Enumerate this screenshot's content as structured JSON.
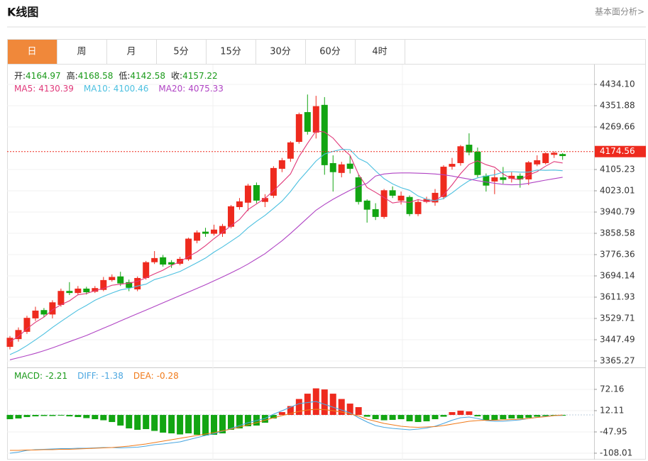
{
  "header": {
    "title": "K线图",
    "link": "基本面分析>"
  },
  "tabs": [
    "日",
    "周",
    "月",
    "5分",
    "15分",
    "30分",
    "60分",
    "4时"
  ],
  "active_tab": 0,
  "chart_data": [
    {
      "type": "candlestick",
      "info": [
        {
          "label": "开:",
          "value": 4164.97
        },
        {
          "label": "高:",
          "value": 4168.58
        },
        {
          "label": "低:",
          "value": 4142.58
        },
        {
          "label": "收:",
          "value": 4157.22
        }
      ],
      "info_value_color": "#1a9a1a",
      "up_color": "#ee2a1e",
      "down_color": "#12a512",
      "open": [
        3420,
        3450,
        3478,
        3530,
        3562,
        3545,
        3582,
        3636,
        3628,
        3645,
        3633,
        3640,
        3678,
        3692,
        3670,
        3642,
        3686,
        3747,
        3766,
        3747,
        3741,
        3758,
        3830,
        3865,
        3857,
        3857,
        3884,
        3960,
        3977,
        4045,
        3980,
        4004,
        4108,
        4147,
        4212,
        4327,
        4248,
        4355,
        4130,
        4092,
        4128,
        4075,
        3985,
        3952,
        3922,
        4025,
        3985,
        3999,
        3933,
        3980,
        3978,
        3999,
        4116,
        4130,
        4201,
        4174,
        4081,
        4059,
        4075,
        4070,
        4081,
        4067,
        4125,
        4130,
        4162,
        4164.97
      ],
      "high": [
        3462,
        3495,
        3540,
        3575,
        3570,
        3600,
        3645,
        3670,
        3655,
        3652,
        3655,
        3690,
        3700,
        3710,
        3680,
        3692,
        3752,
        3790,
        3775,
        3755,
        3768,
        3842,
        3870,
        3880,
        3892,
        3895,
        3968,
        3995,
        4050,
        4055,
        4010,
        4118,
        4150,
        4215,
        4325,
        4395,
        4390,
        4385,
        4160,
        4135,
        4160,
        4085,
        3990,
        3975,
        4030,
        4040,
        4020,
        4005,
        3990,
        4000,
        4030,
        4122,
        4150,
        4200,
        4245,
        4190,
        4090,
        4105,
        4115,
        4095,
        4090,
        4138,
        4160,
        4172,
        4175,
        4168.58
      ],
      "low": [
        3410,
        3440,
        3470,
        3520,
        3535,
        3530,
        3575,
        3620,
        3620,
        3622,
        3628,
        3635,
        3672,
        3655,
        3635,
        3635,
        3680,
        3740,
        3730,
        3725,
        3735,
        3752,
        3820,
        3845,
        3850,
        3845,
        3878,
        3950,
        3945,
        3975,
        3960,
        3995,
        4095,
        4135,
        4205,
        4240,
        4225,
        4085,
        4020,
        4075,
        4090,
        3970,
        3900,
        3910,
        3915,
        3995,
        3970,
        3925,
        3925,
        3975,
        3965,
        3990,
        4105,
        4120,
        4160,
        4075,
        4020,
        4010,
        4050,
        4055,
        4035,
        4045,
        4118,
        4125,
        4150,
        4142.58
      ],
      "close": [
        3455,
        3485,
        3532,
        3560,
        3545,
        3592,
        3636,
        3628,
        3645,
        3631,
        3647,
        3678,
        3690,
        3665,
        3648,
        3686,
        3747,
        3763,
        3738,
        3738,
        3760,
        3838,
        3862,
        3857,
        3873,
        3887,
        3963,
        3982,
        4043,
        3985,
        3995,
        4111,
        4141,
        4210,
        4319,
        4251,
        4350,
        4122,
        4095,
        4125,
        4108,
        3980,
        3950,
        3922,
        4025,
        4004,
        4004,
        3933,
        3980,
        3991,
        4015,
        4116,
        4127,
        4195,
        4171,
        4084,
        4043,
        4075,
        4065,
        4081,
        4067,
        4133,
        4141,
        4168,
        4170,
        4157.22
      ],
      "series": [
        {
          "label": "MA5:",
          "legend_value": 4130.39,
          "color": "#e0397a",
          "values": [
            3440,
            3460,
            3490,
            3515,
            3535,
            3563,
            3583,
            3598,
            3621,
            3626,
            3637,
            3646,
            3658,
            3662,
            3666,
            3673,
            3687,
            3702,
            3716,
            3735,
            3749,
            3769,
            3787,
            3811,
            3838,
            3863,
            3888,
            3912,
            3950,
            3972,
            3994,
            4023,
            4055,
            4088,
            4155,
            4206,
            4254,
            4250,
            4227,
            4189,
            4160,
            4086,
            4036,
            4017,
            3997,
            3976,
            3981,
            3978,
            3989,
            3982,
            3985,
            4007,
            4046,
            4089,
            4125,
            4139,
            4124,
            4114,
            4088,
            4070,
            4066,
            4084,
            4097,
            4118,
            4136,
            4130.39
          ]
        },
        {
          "label": "MA10:",
          "legend_value": 4100.46,
          "color": "#4cc0e0",
          "values": [
            3390,
            3405,
            3425,
            3447,
            3470,
            3495,
            3518,
            3540,
            3562,
            3580,
            3600,
            3615,
            3628,
            3640,
            3646,
            3655,
            3662,
            3680,
            3689,
            3700,
            3711,
            3728,
            3745,
            3763,
            3786,
            3806,
            3828,
            3850,
            3880,
            3905,
            3928,
            3955,
            3983,
            4020,
            4063,
            4100,
            4138,
            4165,
            4175,
            4183,
            4182,
            4148,
            4132,
            4100,
            4070,
            4050,
            4035,
            4025,
            4003,
            3990,
            3985,
            3993,
            4015,
            4040,
            4062,
            4073,
            4080,
            4085,
            4095,
            4097,
            4095,
            4095,
            4103,
            4102,
            4103,
            4100.46
          ]
        },
        {
          "label": "MA20:",
          "legend_value": 4075.33,
          "color": "#b044c4",
          "values": [
            3370,
            3378,
            3386,
            3395,
            3405,
            3416,
            3428,
            3440,
            3452,
            3464,
            3478,
            3492,
            3506,
            3520,
            3534,
            3548,
            3562,
            3576,
            3590,
            3604,
            3618,
            3632,
            3646,
            3660,
            3675,
            3690,
            3706,
            3722,
            3740,
            3760,
            3780,
            3805,
            3830,
            3858,
            3888,
            3918,
            3948,
            3970,
            3990,
            4008,
            4025,
            4040,
            4052,
            4080,
            4088,
            4091,
            4092,
            4092,
            4091,
            4090,
            4088,
            4085,
            4080,
            4074,
            4068,
            4062,
            4057,
            4052,
            4048,
            4046,
            4047,
            4052,
            4058,
            4064,
            4070,
            4075.33
          ]
        }
      ],
      "current_price": 4174.56,
      "current_color": "#ee2a1e",
      "ylim": [
        3340.61,
        4508.09
      ],
      "yticks": [
        {
          "value": 4434.1,
          "label": "4434.10"
        },
        4351.88,
        4269.66,
        4105.23,
        4023.01,
        3940.79,
        3858.58,
        3776.36,
        3694.14,
        3611.93,
        3529.71,
        3447.49,
        3365.27
      ],
      "grid": true
    },
    {
      "type": "macd",
      "macd_label": "MACD:",
      "macd_value": -2.21,
      "macd_color": "#1a9a1a",
      "values": [
        -12,
        -10,
        -6,
        -4,
        -3,
        -3,
        -2,
        -4,
        -6,
        -9,
        -12,
        -15,
        -20,
        -30,
        -38,
        -42,
        -40,
        -45,
        -50,
        -52,
        -55,
        -52,
        -56,
        -58,
        -56,
        -52,
        -42,
        -38,
        -32,
        -30,
        -22,
        -10,
        8,
        25,
        45,
        60,
        75,
        72,
        60,
        45,
        32,
        22,
        -5,
        -12,
        -15,
        -14,
        -12,
        -18,
        -20,
        -18,
        -12,
        -5,
        8,
        12,
        10,
        -4,
        -14,
        -14,
        -12,
        -10,
        -10,
        -8,
        -5,
        -3,
        -2,
        -2.21
      ],
      "series": [
        {
          "label": "DIFF:",
          "legend_value": -1.38,
          "color": "#4aa6e0",
          "values": [
            -108,
            -105,
            -100,
            -98,
            -97,
            -96,
            -95,
            -95,
            -94,
            -94,
            -93,
            -92,
            -92,
            -93,
            -92,
            -91,
            -88,
            -84,
            -82,
            -79,
            -76,
            -70,
            -64,
            -58,
            -53,
            -46,
            -38,
            -30,
            -22,
            -16,
            -10,
            2,
            12,
            22,
            32,
            35,
            38,
            30,
            22,
            14,
            6,
            -8,
            -20,
            -30,
            -35,
            -38,
            -40,
            -42,
            -40,
            -37,
            -32,
            -24,
            -15,
            -8,
            -6,
            -10,
            -16,
            -18,
            -18,
            -16,
            -14,
            -10,
            -7,
            -4,
            -2,
            -1.38
          ]
        },
        {
          "label": "DEA:",
          "legend_value": -0.28,
          "color": "#f07a1a",
          "values": [
            -100,
            -100,
            -99,
            -99,
            -98,
            -98,
            -97,
            -97,
            -96,
            -95,
            -94,
            -93,
            -92,
            -90,
            -88,
            -85,
            -82,
            -78,
            -74,
            -70,
            -66,
            -62,
            -58,
            -54,
            -50,
            -45,
            -40,
            -34,
            -28,
            -22,
            -15,
            -8,
            -2,
            4,
            10,
            14,
            16,
            15,
            12,
            8,
            3,
            -3,
            -12,
            -18,
            -24,
            -28,
            -32,
            -34,
            -35,
            -34,
            -33,
            -30,
            -26,
            -22,
            -18,
            -16,
            -15,
            -15,
            -14,
            -13,
            -12,
            -10,
            -7,
            -5,
            -2,
            -0.28
          ]
        }
      ],
      "ylim": [
        -126.03,
        130.22
      ],
      "yticks": [
        72.16,
        12.11,
        -47.95,
        -108.01
      ],
      "grid": true
    }
  ]
}
